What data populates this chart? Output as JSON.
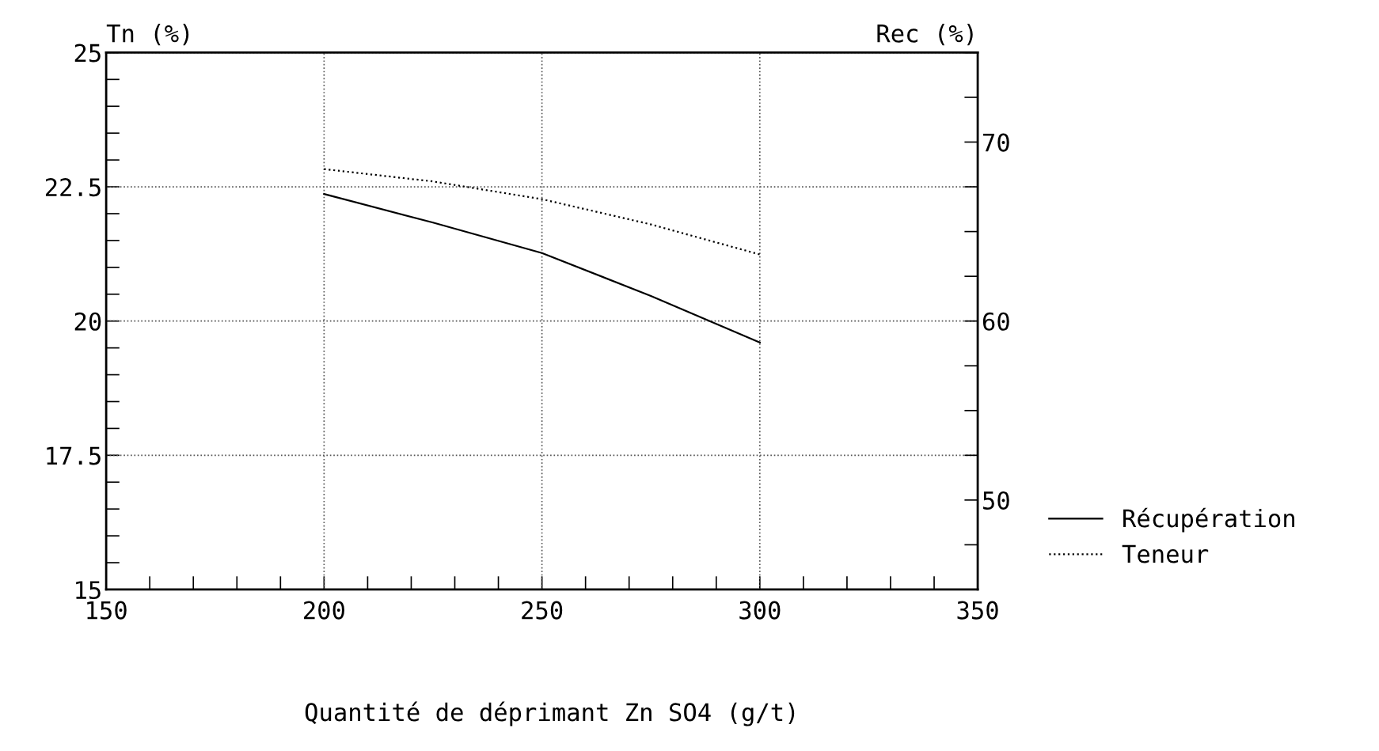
{
  "chart_data": {
    "type": "line",
    "xlabel": "Quantité de déprimant Zn SO4 (g/t)",
    "ylabel": "Tn (%)",
    "y2label": "Rec (%)",
    "x": [
      200,
      225,
      250,
      275,
      300
    ],
    "series": [
      {
        "name": "Récupération",
        "color": "#000000",
        "axis": "y2",
        "line_style": "solid",
        "values": [
          67.1,
          65.5,
          63.8,
          61.4,
          58.8
        ]
      },
      {
        "name": "Teneur",
        "color": "#000000",
        "axis": "y",
        "line_style": "dotted",
        "values": [
          22.83,
          22.6,
          22.27,
          21.8,
          21.24
        ]
      }
    ],
    "xlim": [
      150,
      350
    ],
    "xticks": [
      150,
      200,
      250,
      300,
      350
    ],
    "ylim": [
      15,
      25
    ],
    "yticks": [
      15,
      17.5,
      20,
      22.5,
      25
    ],
    "y2lim": [
      45,
      75
    ],
    "y2ticks": [
      50,
      60,
      70
    ],
    "grid": true,
    "legend": "bottom right",
    "marker": "none"
  }
}
